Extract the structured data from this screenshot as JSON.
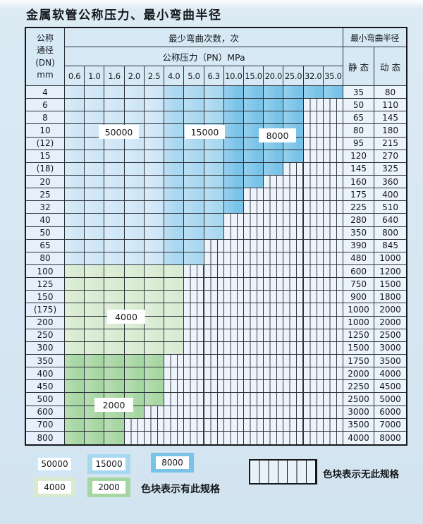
{
  "title": "金属软管公称压力、最小弯曲半径",
  "table": {
    "headers": {
      "dn_label": "公称\n通径\n(DN)\nmm",
      "bend_cycles": "最少弯曲次数，次",
      "pressure": "公称压力（PN）MPa",
      "pressure_values": [
        "0.6",
        "1.0",
        "1.6",
        "2.0",
        "2.5",
        "4.0",
        "5.0",
        "6.3",
        "10.0",
        "15.0",
        "20.0",
        "25.0",
        "32.0",
        "35.0"
      ],
      "min_bend_radius": "最小弯曲半径",
      "static_label": "静 态",
      "dynamic_label": "动 态"
    }
  },
  "chart_data": {
    "type": "table",
    "title": "金属软管公称压力、最小弯曲半径",
    "columns": [
      "公称通径(DN) mm",
      "0.6",
      "1.0",
      "1.6",
      "2.0",
      "2.5",
      "4.0",
      "5.0",
      "6.3",
      "10.0",
      "15.0",
      "20.0",
      "25.0",
      "32.0",
      "35.0",
      "静态",
      "动态"
    ],
    "cycle_bands": {
      "blue_rows_DN4_80": {
        "PN 0.6-2.5": "50000",
        "PN 4.0-6.3": "15000",
        "PN 10.0-35.0": "8000"
      },
      "green_rows_DN100_300": "4000",
      "green_rows_DN350_800": "2000"
    },
    "legend_meaning": {
      "colored_block": "色块表示有此规格",
      "striped_block": "色块表示无此规格"
    },
    "rows": [
      {
        "dn": "4",
        "max_pn": "35.0",
        "cycles_group": "blue",
        "static": "35",
        "dynamic": "80"
      },
      {
        "dn": "6",
        "max_pn": "25.0",
        "cycles_group": "blue",
        "static": "50",
        "dynamic": "110"
      },
      {
        "dn": "8",
        "max_pn": "25.0",
        "cycles_group": "blue",
        "static": "65",
        "dynamic": "145"
      },
      {
        "dn": "10",
        "max_pn": "25.0",
        "cycles_group": "blue",
        "static": "80",
        "dynamic": "180"
      },
      {
        "dn": "(12)",
        "max_pn": "25.0",
        "cycles_group": "blue",
        "static": "95",
        "dynamic": "215"
      },
      {
        "dn": "15",
        "max_pn": "25.0",
        "cycles_group": "blue",
        "static": "120",
        "dynamic": "270"
      },
      {
        "dn": "(18)",
        "max_pn": "20.0",
        "cycles_group": "blue",
        "static": "145",
        "dynamic": "325"
      },
      {
        "dn": "20",
        "max_pn": "15.0",
        "cycles_group": "blue",
        "static": "160",
        "dynamic": "360"
      },
      {
        "dn": "25",
        "max_pn": "10.0",
        "cycles_group": "blue",
        "static": "175",
        "dynamic": "400"
      },
      {
        "dn": "32",
        "max_pn": "10.0",
        "cycles_group": "blue",
        "static": "225",
        "dynamic": "510"
      },
      {
        "dn": "40",
        "max_pn": "6.3",
        "cycles_group": "blue",
        "static": "280",
        "dynamic": "640"
      },
      {
        "dn": "50",
        "max_pn": "6.3",
        "cycles_group": "blue",
        "static": "350",
        "dynamic": "800"
      },
      {
        "dn": "65",
        "max_pn": "5.0",
        "cycles_group": "blue",
        "static": "390",
        "dynamic": "845"
      },
      {
        "dn": "80",
        "max_pn": "5.0",
        "cycles_group": "blue",
        "static": "480",
        "dynamic": "1000"
      },
      {
        "dn": "100",
        "max_pn": "4.0",
        "cycles_group": "4000",
        "static": "600",
        "dynamic": "1200"
      },
      {
        "dn": "125",
        "max_pn": "4.0",
        "cycles_group": "4000",
        "static": "750",
        "dynamic": "1500"
      },
      {
        "dn": "150",
        "max_pn": "4.0",
        "cycles_group": "4000",
        "static": "900",
        "dynamic": "1800"
      },
      {
        "dn": "(175)",
        "max_pn": "4.0",
        "cycles_group": "4000",
        "static": "1000",
        "dynamic": "2000"
      },
      {
        "dn": "200",
        "max_pn": "4.0",
        "cycles_group": "4000",
        "static": "1000",
        "dynamic": "2000"
      },
      {
        "dn": "250",
        "max_pn": "4.0",
        "cycles_group": "4000",
        "static": "1250",
        "dynamic": "2500"
      },
      {
        "dn": "300",
        "max_pn": "4.0",
        "cycles_group": "4000",
        "static": "1500",
        "dynamic": "3000"
      },
      {
        "dn": "350",
        "max_pn": "2.5",
        "cycles_group": "2000",
        "static": "1750",
        "dynamic": "3500"
      },
      {
        "dn": "400",
        "max_pn": "2.5",
        "cycles_group": "2000",
        "static": "2000",
        "dynamic": "4000"
      },
      {
        "dn": "450",
        "max_pn": "2.5",
        "cycles_group": "2000",
        "static": "2250",
        "dynamic": "4500"
      },
      {
        "dn": "500",
        "max_pn": "2.5",
        "cycles_group": "2000",
        "static": "2500",
        "dynamic": "5000"
      },
      {
        "dn": "600",
        "max_pn": "2.0",
        "cycles_group": "2000",
        "static": "3000",
        "dynamic": "6000"
      },
      {
        "dn": "700",
        "max_pn": "1.6",
        "cycles_group": "2000",
        "static": "3500",
        "dynamic": "7000"
      },
      {
        "dn": "800",
        "max_pn": "1.6",
        "cycles_group": "2000",
        "static": "4000",
        "dynamic": "8000"
      }
    ]
  },
  "region_labels": {
    "l50000": "50000",
    "l15000": "15000",
    "l8000": "8000",
    "l4000": "4000",
    "l2000": "2000"
  },
  "legend": {
    "labels": [
      "50000",
      "15000",
      "8000",
      "4000",
      "2000"
    ],
    "has_spec_text": "色块表示有此规格",
    "no_spec_text": "色块表示无此规格"
  },
  "colors": {
    "cycles50000": "#cfe6f6",
    "cycles15000": "#a8d7f0",
    "cycles8000": "#79c3e9",
    "cycles4000": "#d8ebd1",
    "cycles2000": "#a6d6a1"
  }
}
